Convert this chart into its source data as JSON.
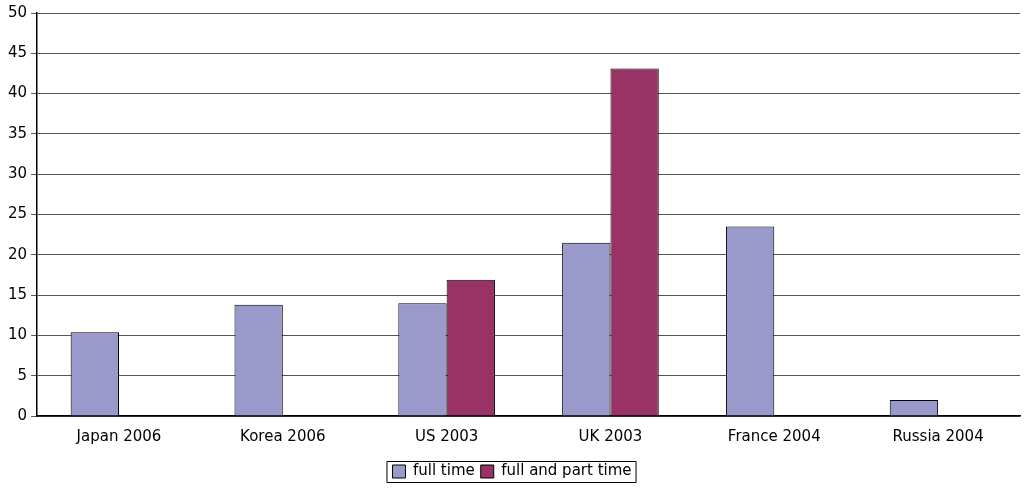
{
  "chart_data": {
    "type": "bar",
    "categories": [
      "Japan 2006",
      "Korea 2006",
      "US 2003",
      "UK 2003",
      "France 2004",
      "Russia 2004"
    ],
    "series": [
      {
        "name": "full time",
        "color": "#9999cc",
        "values": [
          10.4,
          13.8,
          14.0,
          21.5,
          23.5,
          2.0
        ]
      },
      {
        "name": "full and part time",
        "color": "#993366",
        "values": [
          null,
          null,
          16.9,
          43.1,
          null,
          null
        ]
      }
    ],
    "ylim": [
      0,
      50
    ],
    "yticks": [
      0,
      5,
      10,
      15,
      20,
      25,
      30,
      35,
      40,
      45,
      50
    ],
    "grid": "y",
    "legend": "bottom"
  }
}
